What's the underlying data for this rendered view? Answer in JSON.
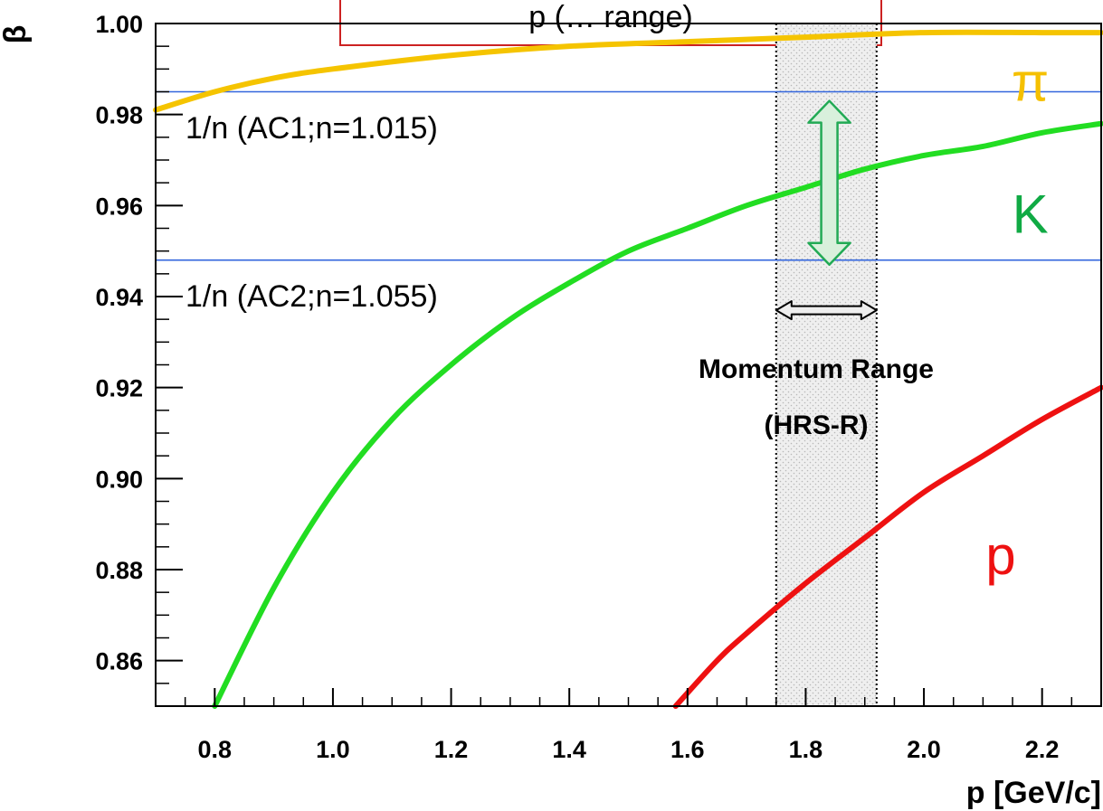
{
  "chart_data": {
    "type": "line",
    "title": "p (… range)",
    "xlabel": "p [GeV/c]",
    "ylabel": "β",
    "xlim": [
      0.7,
      2.3
    ],
    "ylim": [
      0.85,
      1.0
    ],
    "x_ticks": [
      "0.8",
      "1.0",
      "1.2",
      "1.4",
      "1.6",
      "1.8",
      "2.0",
      "2.2"
    ],
    "y_ticks": [
      "0.86",
      "0.88",
      "0.90",
      "0.92",
      "0.94",
      "0.96",
      "0.98",
      "1.00"
    ],
    "grid": false,
    "series": [
      {
        "name": "π",
        "color": "#f5c400",
        "x": [
          0.7,
          0.8,
          0.9,
          1.0,
          1.2,
          1.4,
          1.6,
          1.8,
          2.0,
          2.2,
          2.3
        ],
        "y": [
          0.981,
          0.985,
          0.988,
          0.99,
          0.993,
          0.995,
          0.996,
          0.997,
          0.998,
          0.998,
          0.998
        ]
      },
      {
        "name": "K",
        "color": "#22dd22",
        "x": [
          0.8,
          0.9,
          1.0,
          1.1,
          1.2,
          1.3,
          1.4,
          1.5,
          1.6,
          1.7,
          1.8,
          1.9,
          2.0,
          2.1,
          2.2,
          2.3
        ],
        "y": [
          0.85,
          0.876,
          0.897,
          0.913,
          0.925,
          0.935,
          0.943,
          0.95,
          0.955,
          0.96,
          0.964,
          0.968,
          0.971,
          0.973,
          0.976,
          0.978
        ]
      },
      {
        "name": "p",
        "color": "#ee1111",
        "x": [
          1.58,
          1.65,
          1.7,
          1.8,
          1.9,
          2.0,
          2.1,
          2.2,
          2.3
        ],
        "y": [
          0.85,
          0.86,
          0.866,
          0.877,
          0.887,
          0.897,
          0.905,
          0.913,
          0.92
        ]
      }
    ],
    "hlines": [
      {
        "y": 0.985,
        "label": "1/n (AC1;n=1.015)",
        "color": "#3366dd"
      },
      {
        "y": 0.948,
        "label": "1/n (AC2;n=1.055)",
        "color": "#3366dd"
      }
    ],
    "momentum_band": {
      "xmin": 1.75,
      "xmax": 1.92,
      "label_line1": "Momentum Range",
      "label_line2": "(HRS-R)"
    },
    "separation_arrow": {
      "x": 1.84,
      "y_top": 0.983,
      "y_bottom": 0.947,
      "color": "#22aa55"
    },
    "range_arrow": {
      "x_left": 1.75,
      "x_right": 1.92,
      "y": 0.937
    },
    "curve_labels": [
      {
        "text": "π",
        "x": 2.18,
        "y": 0.987,
        "color": "#f5c000"
      },
      {
        "text": "K",
        "x": 2.18,
        "y": 0.958,
        "color": "#10aa44"
      },
      {
        "text": "p",
        "x": 2.13,
        "y": 0.883,
        "color": "#ee1111"
      }
    ]
  }
}
